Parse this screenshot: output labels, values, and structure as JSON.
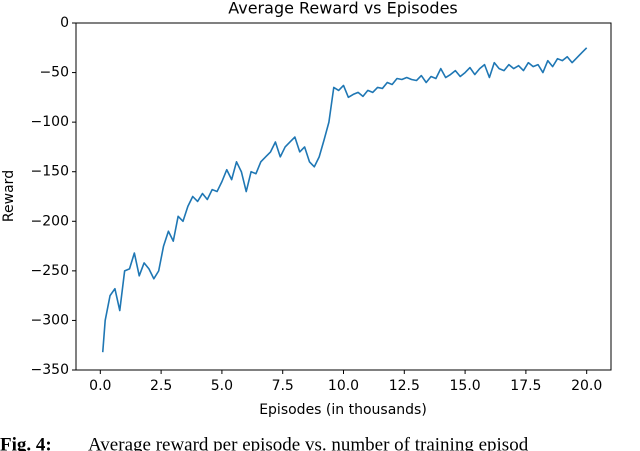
{
  "chart_data": {
    "type": "line",
    "title": "Average Reward vs Episodes",
    "xlabel": "Episodes (in thousands)",
    "ylabel": "Reward",
    "caption_label": "Fig. 4:",
    "caption": "Average reward per episode vs. number of training episod",
    "x": [
      0.1,
      0.2,
      0.4,
      0.6,
      0.8,
      1.0,
      1.2,
      1.4,
      1.6,
      1.8,
      2.0,
      2.2,
      2.4,
      2.6,
      2.8,
      3.0,
      3.2,
      3.4,
      3.6,
      3.8,
      4.0,
      4.2,
      4.4,
      4.6,
      4.8,
      5.0,
      5.2,
      5.4,
      5.6,
      5.8,
      6.0,
      6.2,
      6.4,
      6.6,
      6.8,
      7.0,
      7.2,
      7.4,
      7.6,
      7.8,
      8.0,
      8.2,
      8.4,
      8.6,
      8.8,
      9.0,
      9.2,
      9.4,
      9.6,
      9.8,
      10.0,
      10.2,
      10.4,
      10.6,
      10.8,
      11.0,
      11.2,
      11.4,
      11.6,
      11.8,
      12.0,
      12.2,
      12.4,
      12.6,
      12.8,
      13.0,
      13.2,
      13.4,
      13.6,
      13.8,
      14.0,
      14.2,
      14.4,
      14.6,
      14.8,
      15.0,
      15.2,
      15.4,
      15.6,
      15.8,
      16.0,
      16.2,
      16.4,
      16.6,
      16.8,
      17.0,
      17.2,
      17.4,
      17.6,
      17.8,
      18.0,
      18.2,
      18.4,
      18.6,
      18.8,
      19.0,
      19.2,
      19.4,
      19.6,
      19.8,
      20.0
    ],
    "series": [
      {
        "name": "Reward",
        "color": "#1f77b4",
        "values": [
          -332,
          -300,
          -275,
          -268,
          -290,
          -250,
          -248,
          -232,
          -255,
          -242,
          -248,
          -258,
          -250,
          -225,
          -210,
          -220,
          -195,
          -200,
          -185,
          -175,
          -180,
          -172,
          -178,
          -168,
          -170,
          -160,
          -148,
          -158,
          -140,
          -150,
          -170,
          -150,
          -152,
          -140,
          -135,
          -130,
          -120,
          -135,
          -125,
          -120,
          -115,
          -130,
          -125,
          -140,
          -145,
          -135,
          -118,
          -100,
          -65,
          -68,
          -63,
          -75,
          -72,
          -70,
          -74,
          -68,
          -70,
          -65,
          -66,
          -60,
          -62,
          -56,
          -57,
          -55,
          -57,
          -58,
          -53,
          -60,
          -54,
          -56,
          -46,
          -55,
          -52,
          -48,
          -54,
          -50,
          -45,
          -52,
          -46,
          -42,
          -55,
          -40,
          -46,
          -48,
          -42,
          -46,
          -43,
          -48,
          -40,
          -44,
          -42,
          -50,
          -38,
          -44,
          -36,
          -38,
          -34,
          -40,
          -35,
          -30,
          -25
        ]
      }
    ],
    "xlim": [
      -1.0,
      21.0
    ],
    "xticks": [
      {
        "value": 0,
        "label": "0.0"
      },
      2.5,
      {
        "value": 5,
        "label": "5.0"
      },
      7.5,
      {
        "value": 10,
        "label": "10.0"
      },
      12.5,
      {
        "value": 15,
        "label": "15.0"
      },
      17.5,
      {
        "value": 20,
        "label": "20.0"
      }
    ],
    "ylim": [
      -350,
      0
    ],
    "yticks": [
      0,
      {
        "value": -50,
        "label": "−50"
      },
      {
        "value": -100,
        "label": "−100"
      },
      {
        "value": -150,
        "label": "−150"
      },
      {
        "value": -200,
        "label": "−200"
      },
      {
        "value": -250,
        "label": "−250"
      },
      {
        "value": -300,
        "label": "−300"
      },
      {
        "value": -350,
        "label": "−350"
      }
    ],
    "grid": false
  }
}
